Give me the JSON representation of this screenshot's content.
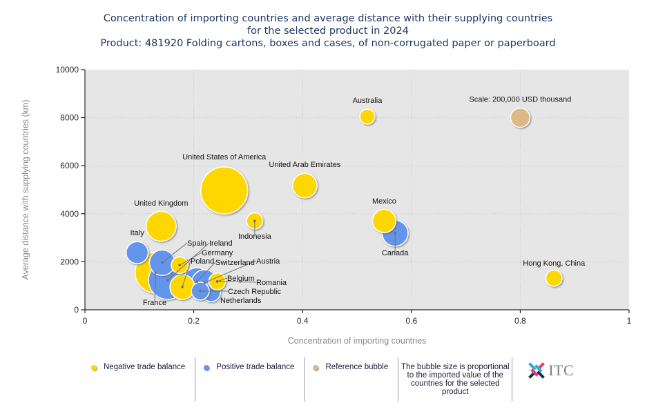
{
  "chart_data": {
    "type": "bubble",
    "title": [
      "Concentration of importing countries and average distance with their supplying countries",
      "for the selected product in 2024",
      "Product: 481920 Folding cartons, boxes and cases, of non-corrugated paper or paperboard"
    ],
    "xlabel": "Concentration of importing countries",
    "ylabel": "Average distance with supplying countries (km)",
    "xlim": [
      0,
      1
    ],
    "ylim": [
      0,
      10000
    ],
    "xticks": [
      "0",
      "0.2",
      "0.4",
      "0.6",
      "0.8",
      "1"
    ],
    "xtick_values": [
      0,
      0.2,
      0.4,
      0.6,
      0.8,
      1
    ],
    "yticks": [
      "0",
      "2000",
      "4000",
      "6000",
      "8000",
      "10000"
    ],
    "ytick_values": [
      0,
      2000,
      4000,
      6000,
      8000,
      10000
    ],
    "grid": true,
    "colors": {
      "negative": "#FFD700",
      "positive": "#6495ED",
      "reference": "#DEB887",
      "plot_bg": "#E6E6E6"
    },
    "reference_bubble": {
      "label": "Scale: 200,000 USD thousand",
      "x": 0.8,
      "y": 8000,
      "size": 200000
    },
    "points": [
      {
        "name": "France",
        "x": 0.13,
        "y": 1550,
        "size": 900000,
        "balance": "negative"
      },
      {
        "name": "United States of America",
        "x": 0.256,
        "y": 4970,
        "size": 1180000,
        "balance": "negative"
      },
      {
        "name": "Ireland",
        "x": 0.152,
        "y": 1230,
        "size": 780000,
        "balance": "positive"
      },
      {
        "name": "Switzerland",
        "x": 0.206,
        "y": 1170,
        "size": 420000,
        "balance": "positive"
      },
      {
        "name": "Austria",
        "x": 0.22,
        "y": 1130,
        "size": 360000,
        "balance": "positive"
      },
      {
        "name": "Netherlands",
        "x": 0.232,
        "y": 720,
        "size": 180000,
        "balance": "positive"
      },
      {
        "name": "Czech Republic",
        "x": 0.212,
        "y": 780,
        "size": 170000,
        "balance": "positive"
      },
      {
        "name": "Poland",
        "x": 0.179,
        "y": 950,
        "size": 330000,
        "balance": "negative"
      },
      {
        "name": "Spain",
        "x": 0.142,
        "y": 1960,
        "size": 350000,
        "balance": "positive"
      },
      {
        "name": "Germany",
        "x": 0.174,
        "y": 1860,
        "size": 150000,
        "balance": "negative"
      },
      {
        "name": "Belgium",
        "x": 0.243,
        "y": 1180,
        "size": 150000,
        "balance": "negative"
      },
      {
        "name": "Romania",
        "x": 0.243,
        "y": 1180,
        "size": 0,
        "balance": "negative"
      },
      {
        "name": "United Kingdom",
        "x": 0.14,
        "y": 3480,
        "size": 480000,
        "balance": "negative"
      },
      {
        "name": "Italy",
        "x": 0.096,
        "y": 2380,
        "size": 260000,
        "balance": "positive"
      },
      {
        "name": "United Arab Emirates",
        "x": 0.404,
        "y": 5170,
        "size": 320000,
        "balance": "negative"
      },
      {
        "name": "Indonesia",
        "x": 0.312,
        "y": 3700,
        "size": 140000,
        "balance": "negative"
      },
      {
        "name": "Canada",
        "x": 0.57,
        "y": 3190,
        "size": 360000,
        "balance": "positive"
      },
      {
        "name": "Mexico",
        "x": 0.55,
        "y": 3700,
        "size": 290000,
        "balance": "negative"
      },
      {
        "name": "Australia",
        "x": 0.519,
        "y": 8045,
        "size": 120000,
        "balance": "negative"
      },
      {
        "name": "Hong Kong, China",
        "x": 0.862,
        "y": 1320,
        "size": 140000,
        "balance": "negative"
      }
    ],
    "legend": [
      {
        "label": "Negative trade balance",
        "color": "#FFD700"
      },
      {
        "label": "Positive trade balance",
        "color": "#6495ED"
      },
      {
        "label": "Reference bubble",
        "color": "#DEB887"
      }
    ],
    "note": "The bubble size is proportional to the imported value of the countries for the selected product",
    "legend_position": "bottom"
  },
  "logo": {
    "text": "ITC"
  }
}
